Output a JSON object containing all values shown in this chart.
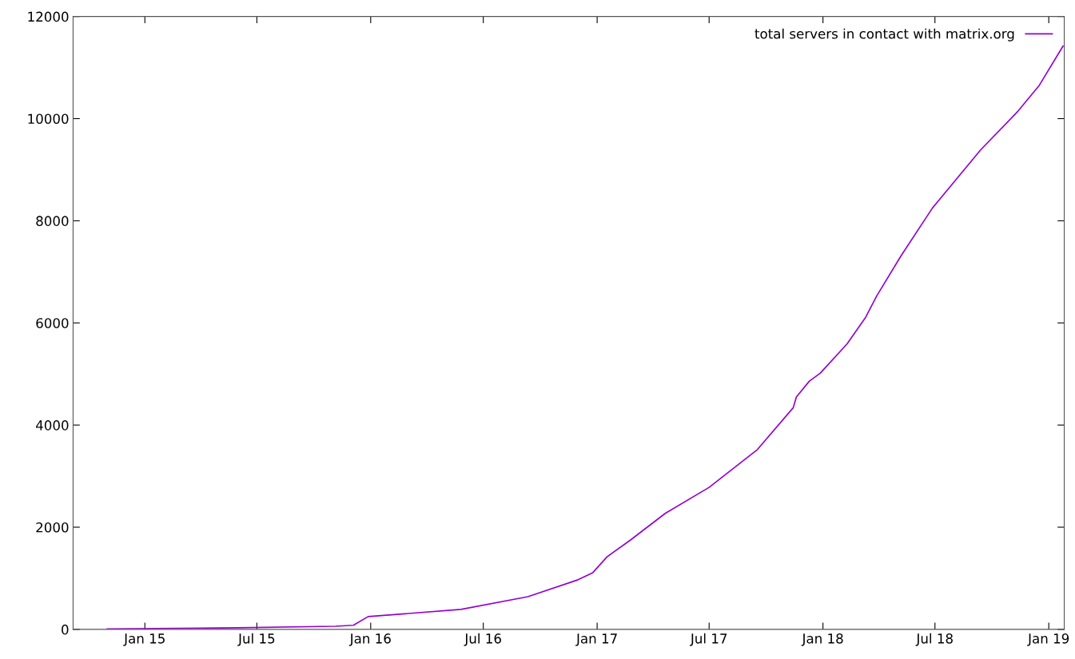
{
  "chart_data": {
    "type": "line",
    "xlim": [
      "2014-09-07",
      "2019-01-26"
    ],
    "ylim": [
      0,
      12000
    ],
    "xticks": [
      {
        "value": "2015-01-01",
        "label": "Jan 15"
      },
      {
        "value": "2015-07-01",
        "label": "Jul 15"
      },
      {
        "value": "2016-01-01",
        "label": "Jan 16"
      },
      {
        "value": "2016-07-01",
        "label": "Jul 16"
      },
      {
        "value": "2017-01-01",
        "label": "Jan 17"
      },
      {
        "value": "2017-07-01",
        "label": "Jul 17"
      },
      {
        "value": "2018-01-01",
        "label": "Jan 18"
      },
      {
        "value": "2018-07-01",
        "label": "Jul 18"
      },
      {
        "value": "2019-01-01",
        "label": "Jan 19"
      }
    ],
    "yticks": [
      0,
      2000,
      4000,
      6000,
      8000,
      10000,
      12000
    ],
    "grid": false,
    "legend": "top right",
    "marker": "none",
    "line_style": "solid",
    "series": [
      {
        "name": "total servers in contact with matrix.org",
        "color": "#9400d3",
        "x": [
          "2014-11-01",
          "2015-06-02",
          "2015-11-05",
          "2015-12-04",
          "2015-12-28",
          "2016-05-26",
          "2016-09-11",
          "2016-12-01",
          "2016-12-25",
          "2017-01-17",
          "2017-02-24",
          "2017-04-21",
          "2017-07-01",
          "2017-09-17",
          "2017-11-14",
          "2017-11-19",
          "2017-12-10",
          "2017-12-28",
          "2018-02-09",
          "2018-03-11",
          "2018-03-29",
          "2018-05-07",
          "2018-06-27",
          "2018-09-13",
          "2018-11-11",
          "2018-12-16",
          "2019-01-24"
        ],
        "values": [
          10,
          30,
          60,
          80,
          250,
          390,
          640,
          970,
          1110,
          1420,
          1750,
          2270,
          2780,
          3520,
          4340,
          4550,
          4860,
          5020,
          5590,
          6110,
          6530,
          7310,
          8250,
          9390,
          10130,
          10640,
          11420
        ]
      }
    ]
  }
}
